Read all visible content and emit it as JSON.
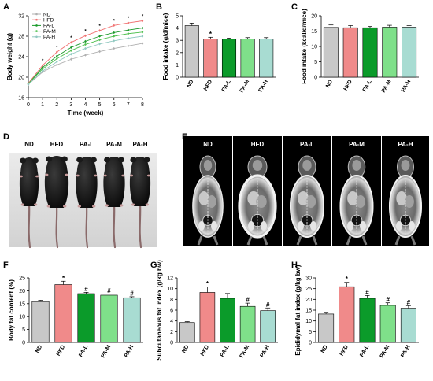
{
  "colors": {
    "ND": "#c8c8c8",
    "HFD": "#f08a8a",
    "PA-L": "#0b9b2a",
    "PA-M": "#7fe08a",
    "PA-H": "#a8dcd2"
  },
  "line_colors": {
    "ND": "#b0b0b0",
    "HFD": "#f07070",
    "PA-L": "#1a9a2a",
    "PA-M": "#50c050",
    "PA-H": "#90c8c0"
  },
  "panel_labels": [
    "A",
    "B",
    "C",
    "D",
    "E",
    "F",
    "G",
    "H"
  ],
  "groups": [
    "ND",
    "HFD",
    "PA-L",
    "PA-M",
    "PA-H"
  ],
  "panels": {
    "D": {
      "headers": [
        "ND",
        "HFD",
        "PA-L",
        "PA-M",
        "PA-H"
      ]
    },
    "E": {
      "headers": [
        "ND",
        "HFD",
        "PA-L",
        "PA-M",
        "PA-H"
      ]
    }
  },
  "chart_data": [
    {
      "id": "A",
      "type": "line",
      "xlabel": "Time (week)",
      "ylabel": "Body weight (g)",
      "xlim": [
        0,
        8
      ],
      "ylim": [
        16,
        32
      ],
      "xticks": [
        0,
        1,
        2,
        3,
        4,
        5,
        6,
        7,
        8
      ],
      "yticks": [
        16,
        20,
        24,
        28,
        32
      ],
      "legend_position": "top-left",
      "x": [
        0,
        1,
        2,
        3,
        4,
        5,
        6,
        7,
        8
      ],
      "series": [
        {
          "name": "ND",
          "values": [
            18.6,
            21.0,
            22.4,
            23.5,
            24.3,
            25.0,
            25.6,
            26.1,
            26.6
          ]
        },
        {
          "name": "HFD",
          "values": [
            18.8,
            22.3,
            24.9,
            26.8,
            28.1,
            29.1,
            30.1,
            30.6,
            31.0
          ]
        },
        {
          "name": "PA-L",
          "values": [
            18.7,
            21.9,
            24.1,
            25.8,
            27.0,
            28.0,
            28.7,
            29.2,
            29.6
          ]
        },
        {
          "name": "PA-M",
          "values": [
            18.7,
            21.6,
            23.6,
            25.2,
            26.4,
            27.3,
            28.0,
            28.5,
            28.8
          ]
        },
        {
          "name": "PA-H",
          "values": [
            18.6,
            21.2,
            23.0,
            24.5,
            25.6,
            26.5,
            27.1,
            27.6,
            28.0
          ]
        }
      ],
      "annotations": [
        "*",
        "*",
        "*",
        "*",
        "*",
        "*",
        "*",
        "*"
      ]
    },
    {
      "id": "B",
      "type": "bar",
      "ylabel": "Food intake (g/d/mice)",
      "ylim": [
        0,
        5
      ],
      "yticks": [
        0,
        1,
        2,
        3,
        4,
        5
      ],
      "categories": [
        "ND",
        "HFD",
        "PA-L",
        "PA-M",
        "PA-H"
      ],
      "values": [
        4.2,
        3.1,
        3.1,
        3.1,
        3.1
      ],
      "errors": [
        0.2,
        0.15,
        0.08,
        0.12,
        0.12
      ],
      "annotations": [
        "",
        "*",
        "",
        "",
        ""
      ]
    },
    {
      "id": "C",
      "type": "bar",
      "ylabel": "Food intake (kcal/d/mice)",
      "ylim": [
        0,
        20
      ],
      "yticks": [
        0,
        5,
        10,
        15,
        20
      ],
      "categories": [
        "ND",
        "HFD",
        "PA-L",
        "PA-M",
        "PA-H"
      ],
      "values": [
        16.2,
        16.1,
        16.1,
        16.3,
        16.3
      ],
      "errors": [
        0.8,
        0.7,
        0.4,
        0.6,
        0.5
      ],
      "annotations": [
        "",
        "",
        "",
        "",
        ""
      ]
    },
    {
      "id": "F",
      "type": "bar",
      "ylabel": "Body fat content (%)",
      "ylim": [
        0,
        25
      ],
      "yticks": [
        0,
        5,
        10,
        15,
        20,
        25
      ],
      "categories": [
        "ND",
        "HFD",
        "PA-L",
        "PA-M",
        "PA-H"
      ],
      "values": [
        15.8,
        22.4,
        18.9,
        18.3,
        17.3
      ],
      "errors": [
        0.5,
        1.3,
        0.5,
        0.4,
        0.4
      ],
      "annotations": [
        "",
        "*",
        "#",
        "#",
        "#"
      ]
    },
    {
      "id": "G",
      "type": "bar",
      "ylabel": "Subcutaneous fat index (g/kg bw)",
      "ylim": [
        0,
        12
      ],
      "yticks": [
        0,
        2,
        4,
        6,
        8,
        10,
        12
      ],
      "categories": [
        "ND",
        "HFD",
        "PA-L",
        "PA-M",
        "PA-H"
      ],
      "values": [
        3.7,
        9.3,
        8.2,
        6.7,
        5.9
      ],
      "errors": [
        0.2,
        1.0,
        0.9,
        0.6,
        0.5
      ],
      "annotations": [
        "",
        "*",
        "",
        "#",
        "#"
      ]
    },
    {
      "id": "H",
      "type": "bar",
      "ylabel": "Epididymal fat index (g/kg bw)",
      "ylim": [
        0,
        30
      ],
      "yticks": [
        0,
        5,
        10,
        15,
        20,
        25,
        30
      ],
      "categories": [
        "ND",
        "HFD",
        "PA-L",
        "PA-M",
        "PA-H"
      ],
      "values": [
        13.2,
        25.9,
        20.5,
        17.2,
        15.9
      ],
      "errors": [
        0.8,
        2.0,
        1.3,
        1.2,
        1.2
      ],
      "annotations": [
        "",
        "*",
        "#",
        "#",
        "#"
      ]
    }
  ]
}
